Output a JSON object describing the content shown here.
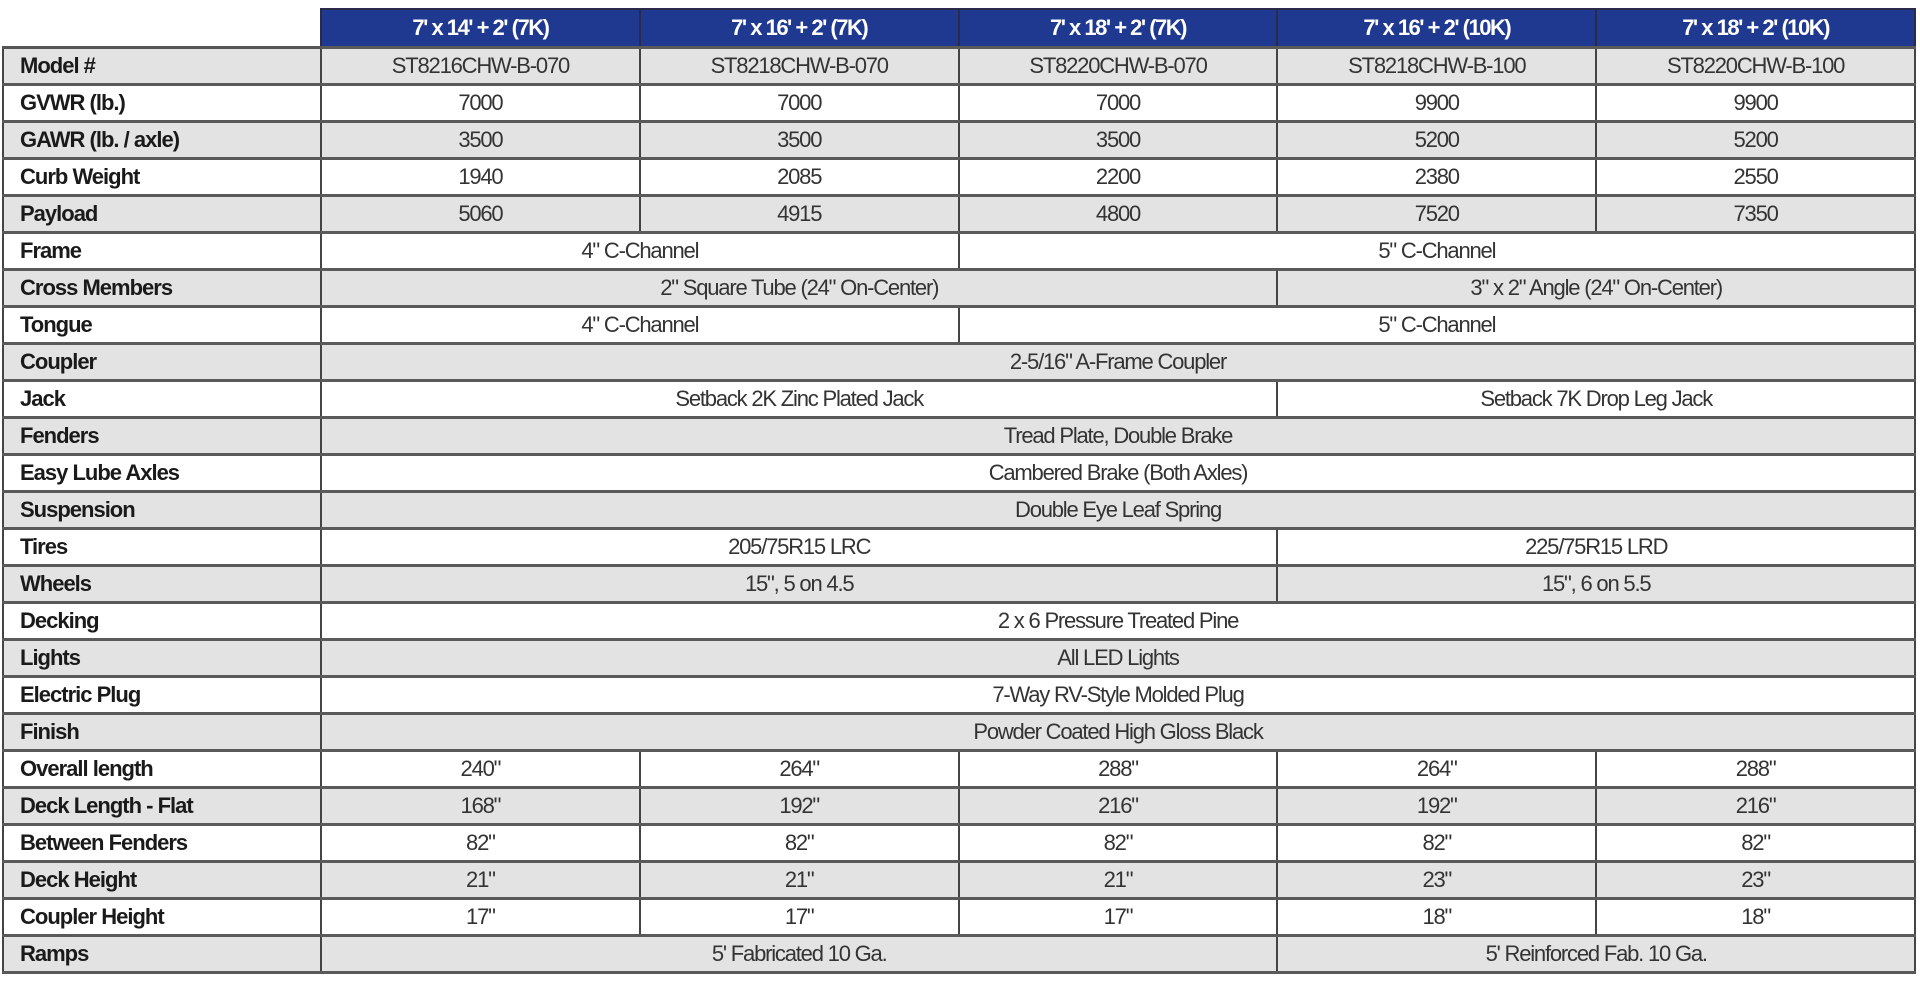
{
  "colors": {
    "header_bg": "#1f3890",
    "row_gray": "#e3e3e3",
    "row_white": "#ffffff"
  },
  "columns": [
    "7' x 14' + 2' (7K)",
    "7' x 16' + 2' (7K)",
    "7' x 18' + 2' (7K)",
    "7' x 16' + 2' (10K)",
    "7' x 18' + 2' (10K)"
  ],
  "rows": [
    {
      "label": "Model #",
      "cells": [
        {
          "value": "ST8216CHW-B-070",
          "span": 1
        },
        {
          "value": "ST8218CHW-B-070",
          "span": 1
        },
        {
          "value": "ST8220CHW-B-070",
          "span": 1
        },
        {
          "value": "ST8218CHW-B-100",
          "span": 1
        },
        {
          "value": "ST8220CHW-B-100",
          "span": 1
        }
      ]
    },
    {
      "label": "GVWR (lb.)",
      "cells": [
        {
          "value": "7000",
          "span": 1
        },
        {
          "value": "7000",
          "span": 1
        },
        {
          "value": "7000",
          "span": 1
        },
        {
          "value": "9900",
          "span": 1
        },
        {
          "value": "9900",
          "span": 1
        }
      ]
    },
    {
      "label": "GAWR (lb. / axle)",
      "cells": [
        {
          "value": "3500",
          "span": 1
        },
        {
          "value": "3500",
          "span": 1
        },
        {
          "value": "3500",
          "span": 1
        },
        {
          "value": "5200",
          "span": 1
        },
        {
          "value": "5200",
          "span": 1
        }
      ]
    },
    {
      "label": "Curb Weight",
      "cells": [
        {
          "value": "1940",
          "span": 1
        },
        {
          "value": "2085",
          "span": 1
        },
        {
          "value": "2200",
          "span": 1
        },
        {
          "value": "2380",
          "span": 1
        },
        {
          "value": "2550",
          "span": 1
        }
      ]
    },
    {
      "label": "Payload",
      "cells": [
        {
          "value": "5060",
          "span": 1
        },
        {
          "value": "4915",
          "span": 1
        },
        {
          "value": "4800",
          "span": 1
        },
        {
          "value": "7520",
          "span": 1
        },
        {
          "value": "7350",
          "span": 1
        }
      ]
    },
    {
      "label": "Frame",
      "cells": [
        {
          "value": "4\" C-Channel",
          "span": 2
        },
        {
          "value": "5\" C-Channel",
          "span": 3
        }
      ]
    },
    {
      "label": "Cross Members",
      "cells": [
        {
          "value": "2\" Square Tube (24\" On-Center)",
          "span": 3
        },
        {
          "value": "3\" x 2\" Angle (24\" On-Center)",
          "span": 2
        }
      ]
    },
    {
      "label": "Tongue",
      "cells": [
        {
          "value": "4\" C-Channel",
          "span": 2
        },
        {
          "value": "5\" C-Channel",
          "span": 3
        }
      ]
    },
    {
      "label": "Coupler",
      "cells": [
        {
          "value": "2-5/16\" A-Frame Coupler",
          "span": 5
        }
      ]
    },
    {
      "label": "Jack",
      "cells": [
        {
          "value": "Setback 2K Zinc Plated Jack",
          "span": 3
        },
        {
          "value": "Setback 7K Drop Leg Jack",
          "span": 2
        }
      ]
    },
    {
      "label": "Fenders",
      "cells": [
        {
          "value": "Tread Plate, Double Brake",
          "span": 5
        }
      ]
    },
    {
      "label": "Easy Lube Axles",
      "cells": [
        {
          "value": "Cambered Brake (Both Axles)",
          "span": 5
        }
      ]
    },
    {
      "label": "Suspension",
      "cells": [
        {
          "value": "Double Eye Leaf Spring",
          "span": 5
        }
      ]
    },
    {
      "label": "Tires",
      "cells": [
        {
          "value": "205/75R15 LRC",
          "span": 3
        },
        {
          "value": "225/75R15 LRD",
          "span": 2
        }
      ]
    },
    {
      "label": "Wheels",
      "cells": [
        {
          "value": "15\", 5 on 4.5",
          "span": 3
        },
        {
          "value": "15\", 6 on  5.5",
          "span": 2
        }
      ]
    },
    {
      "label": "Decking",
      "cells": [
        {
          "value": "2 x 6 Pressure Treated Pine",
          "span": 5
        }
      ]
    },
    {
      "label": "Lights",
      "cells": [
        {
          "value": "All LED Lights",
          "span": 5
        }
      ]
    },
    {
      "label": "Electric Plug",
      "cells": [
        {
          "value": "7-Way RV-Style Molded Plug",
          "span": 5
        }
      ]
    },
    {
      "label": "Finish",
      "cells": [
        {
          "value": "Powder Coated High Gloss Black",
          "span": 5
        }
      ]
    },
    {
      "label": "Overall length",
      "cells": [
        {
          "value": "240\"",
          "span": 1
        },
        {
          "value": "264\"",
          "span": 1
        },
        {
          "value": "288\"",
          "span": 1
        },
        {
          "value": "264\"",
          "span": 1
        },
        {
          "value": "288\"",
          "span": 1
        }
      ]
    },
    {
      "label": "Deck Length - Flat",
      "cells": [
        {
          "value": "168\"",
          "span": 1
        },
        {
          "value": "192\"",
          "span": 1
        },
        {
          "value": "216\"",
          "span": 1
        },
        {
          "value": "192\"",
          "span": 1
        },
        {
          "value": "216\"",
          "span": 1
        }
      ]
    },
    {
      "label": "Between Fenders",
      "cells": [
        {
          "value": "82\"",
          "span": 1
        },
        {
          "value": "82\"",
          "span": 1
        },
        {
          "value": "82\"",
          "span": 1
        },
        {
          "value": "82\"",
          "span": 1
        },
        {
          "value": "82\"",
          "span": 1
        }
      ]
    },
    {
      "label": "Deck Height",
      "cells": [
        {
          "value": "21\"",
          "span": 1
        },
        {
          "value": "21\"",
          "span": 1
        },
        {
          "value": "21\"",
          "span": 1
        },
        {
          "value": "23\"",
          "span": 1
        },
        {
          "value": "23\"",
          "span": 1
        }
      ]
    },
    {
      "label": "Coupler Height",
      "cells": [
        {
          "value": "17\"",
          "span": 1
        },
        {
          "value": "17\"",
          "span": 1
        },
        {
          "value": "17\"",
          "span": 1
        },
        {
          "value": "18\"",
          "span": 1
        },
        {
          "value": "18\"",
          "span": 1
        }
      ]
    },
    {
      "label": "Ramps",
      "cells": [
        {
          "value": "5' Fabricated 10 Ga.",
          "span": 3
        },
        {
          "value": "5' Reinforced Fab. 10 Ga.",
          "span": 2
        }
      ]
    }
  ]
}
